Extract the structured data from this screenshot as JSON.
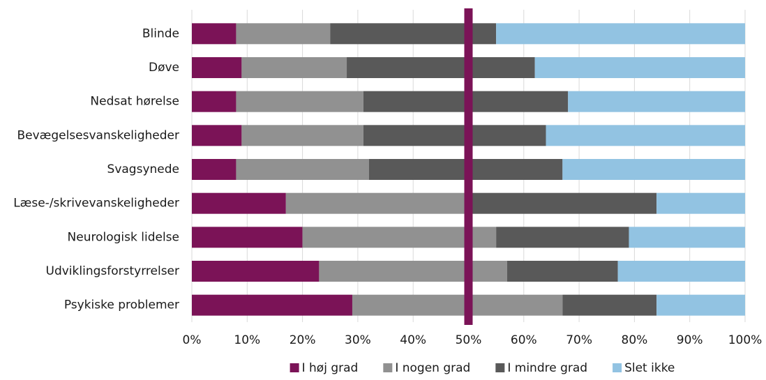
{
  "chart_data": {
    "type": "bar",
    "orientation": "horizontal",
    "stacked": "percent",
    "categories": [
      "Blinde",
      "Døve",
      "Nedsat hørelse",
      "Bevægelsesvanskeligheder",
      "Svagsynede",
      "Læse-/skrivevanskeligheder",
      "Neurologisk lidelse",
      "Udviklingsforstyrrelser",
      "Psykiske problemer"
    ],
    "series": [
      {
        "name": "I høj grad",
        "color": "#7b1357",
        "values": [
          8,
          9,
          8,
          9,
          8,
          17,
          20,
          23,
          29
        ]
      },
      {
        "name": "I nogen grad",
        "color": "#919191",
        "values": [
          17,
          19,
          23,
          22,
          24,
          33,
          35,
          34,
          38
        ]
      },
      {
        "name": "I mindre grad",
        "color": "#595959",
        "values": [
          30,
          34,
          37,
          33,
          35,
          34,
          24,
          20,
          17
        ]
      },
      {
        "name": "Slet ikke",
        "color": "#92c3e2",
        "values": [
          45,
          38,
          32,
          36,
          33,
          16,
          21,
          23,
          16
        ]
      }
    ],
    "x_ticks": [
      "0%",
      "10%",
      "20%",
      "30%",
      "40%",
      "50%",
      "60%",
      "70%",
      "80%",
      "90%",
      "100%"
    ],
    "xlim": [
      0,
      100
    ],
    "reference_line": {
      "value": 50,
      "color": "#7b1357"
    },
    "grid": "vertical",
    "legend_position": "bottom"
  }
}
